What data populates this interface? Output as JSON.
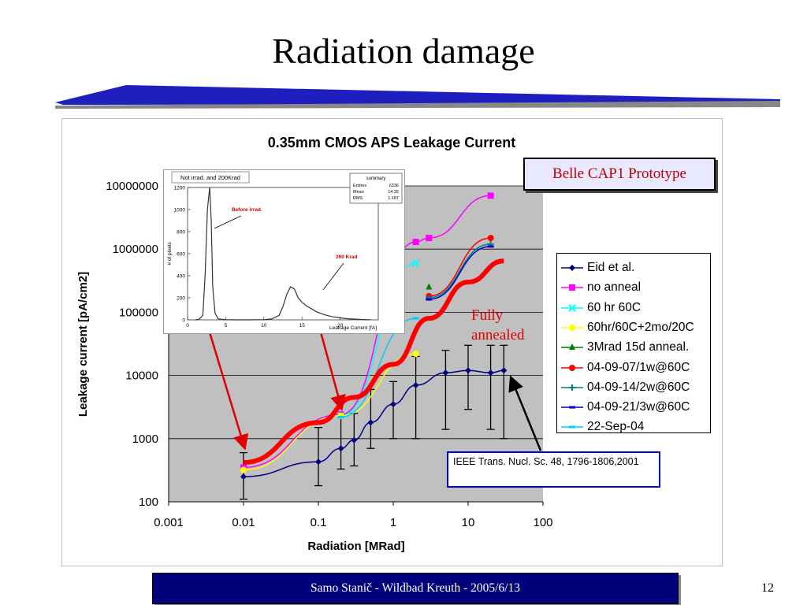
{
  "slide": {
    "title": "Radiation damage",
    "footer": "Samo Stanič - Wildbad Kreuth - 2005/6/13",
    "page_number": "12",
    "accent_color": "#00007a"
  },
  "chart_data": [
    {
      "type": "line",
      "title": "0.35mm CMOS APS Leakage Current",
      "xlabel": "Radiation [MRad]",
      "ylabel": "Leakage current [pA/cm2]",
      "x_scale": "log",
      "y_scale": "log",
      "xlim": [
        0.001,
        100
      ],
      "ylim": [
        100,
        10000000
      ],
      "x_tick_labels": [
        "0.001",
        "0.01",
        "0.1",
        "1",
        "10",
        "100"
      ],
      "y_tick_labels": [
        "100",
        "1000",
        "10000",
        "100000",
        "1000000",
        "10000000"
      ],
      "grid": true,
      "legend_position": "right",
      "series": [
        {
          "name": "Eid et al.",
          "color": "#000080",
          "marker": "diamond",
          "x": [
            0.01,
            0.1,
            0.2,
            0.3,
            0.5,
            1,
            2,
            5,
            10,
            20,
            30
          ],
          "y": [
            250,
            430,
            700,
            950,
            1800,
            3500,
            7000,
            11000,
            12000,
            11000,
            12000
          ],
          "err_low": [
            110,
            180,
            330,
            370,
            700,
            1000,
            1000,
            1400,
            2900,
            1400,
            1000
          ],
          "err_high": [
            600,
            1500,
            2400,
            2500,
            6000,
            8000,
            20000,
            25000,
            30000,
            30000,
            30000
          ]
        },
        {
          "name": "no anneal",
          "color": "#ff00ff",
          "marker": "square",
          "x": [
            0.01,
            0.2,
            2,
            3,
            20
          ],
          "y": [
            350,
            2400,
            1300000,
            1500000,
            7000000
          ]
        },
        {
          "name": "60 hr 60C",
          "color": "#00ffff",
          "marker": "x",
          "x": [
            0.2,
            2
          ],
          "y": [
            2300,
            600000
          ]
        },
        {
          "name": "60hr/60C+2mo/20C",
          "color": "#ffff00",
          "marker": "circle",
          "x": [
            0.01,
            0.2,
            2
          ],
          "y": [
            320,
            2300,
            22000
          ]
        },
        {
          "name": "3Mrad 15d anneal.",
          "color": "#008000",
          "marker": "triangle",
          "x": [
            3
          ],
          "y": [
            250000
          ]
        },
        {
          "name": "04-09-07/1w@60C",
          "color": "#ff0000",
          "marker": "circle",
          "x": [
            3,
            20
          ],
          "y": [
            180000,
            1500000
          ]
        },
        {
          "name": "04-09-14/2w@60C",
          "color": "#008080",
          "marker": "plus",
          "x": [
            3,
            20
          ],
          "y": [
            170000,
            1200000
          ]
        },
        {
          "name": "04-09-21/3w@60C",
          "color": "#0000cc",
          "marker": "dash",
          "x": [
            3,
            20
          ],
          "y": [
            160000,
            1100000
          ]
        },
        {
          "name": "22-Sep-04",
          "color": "#00ccff",
          "marker": "dash",
          "x": [
            0.2,
            2
          ],
          "y": [
            2200,
            80000
          ]
        },
        {
          "name": "",
          "color": "#ff0000",
          "marker": "none",
          "role": "fully annealed band",
          "x": [
            0.01,
            0.1,
            0.3,
            1,
            3,
            10,
            30
          ],
          "y": [
            420,
            1800,
            4500,
            15000,
            80000,
            300000,
            650000
          ]
        }
      ]
    },
    {
      "type": "histogram",
      "title": "Not irrad. and 200Krad",
      "xlabel": "Leakage Current [fA]",
      "ylabel": "# of pixels",
      "xlim": [
        0,
        25
      ],
      "ylim": [
        0,
        1200
      ],
      "x_tick_labels": [
        "0",
        "5",
        "10",
        "15",
        "20"
      ],
      "y_tick_labels": [
        "0",
        "200",
        "400",
        "600",
        "800",
        "1000",
        "1200"
      ],
      "stats": {
        "header": "summary",
        "entries_label": "Entries",
        "entries": "6336",
        "mean_label": "Mean",
        "mean": "14.35",
        "rms_label": "RMS",
        "rms": "1.187"
      },
      "annotations": {
        "before": "Before irrad.",
        "after": "200 Krad"
      },
      "x": [
        1,
        1.5,
        2,
        2.3,
        2.6,
        2.9,
        3.1,
        3.3,
        3.6,
        4,
        4.5,
        5,
        6,
        8,
        10,
        11,
        12,
        12.5,
        13,
        13.5,
        14,
        14.5,
        15,
        15.5,
        16,
        17,
        18,
        19,
        20,
        21,
        22,
        23,
        24
      ],
      "y": [
        0,
        5,
        40,
        400,
        1000,
        1200,
        900,
        300,
        60,
        10,
        5,
        2,
        0,
        0,
        2,
        8,
        40,
        120,
        230,
        300,
        280,
        200,
        160,
        130,
        110,
        70,
        45,
        28,
        18,
        10,
        6,
        3,
        1
      ]
    }
  ],
  "annotations": {
    "belle_label": "Belle CAP1 Prototype",
    "fully_annealed": "Fully annealed",
    "reference": "IEEE Trans. Nucl. Sc. 48, 1796-1806,2001"
  }
}
